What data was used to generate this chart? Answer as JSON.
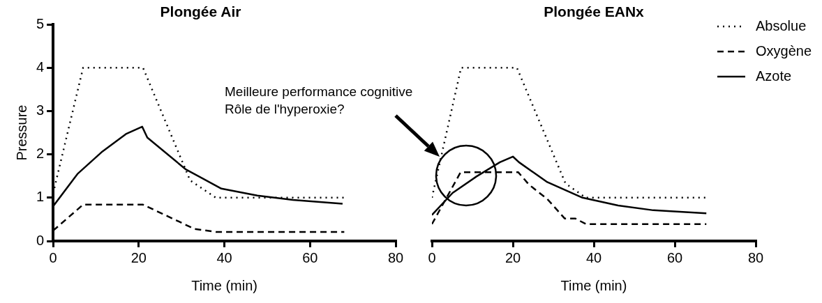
{
  "chart_data": [
    {
      "type": "line",
      "title": "Plongée Air",
      "xlabel": "Time (min)",
      "ylabel": "Pressure",
      "xlim": [
        0,
        80
      ],
      "xticks": [
        0,
        20,
        40,
        60,
        80
      ],
      "ylim": [
        0,
        5
      ],
      "yticks": [
        0,
        1,
        2,
        3,
        4,
        5
      ],
      "grid": false,
      "legend": false,
      "marker": "none",
      "series": [
        {
          "color": "#000000",
          "line_style": "dotted",
          "x": [
            0,
            7,
            21,
            32,
            38,
            68
          ],
          "values": [
            1.1,
            4,
            4,
            1.4,
            1,
            1
          ]
        },
        {
          "color": "#000000",
          "line_style": "dashed",
          "x": [
            0,
            7,
            21,
            33,
            38,
            68
          ],
          "values": [
            0.24,
            0.84,
            0.84,
            0.28,
            0.21,
            0.21
          ]
        },
        {
          "color": "#000000",
          "line_style": "solid",
          "x": [
            0,
            5.7,
            11.3,
            17,
            20.8,
            22,
            30.9,
            39.3,
            47.7,
            56,
            67.6
          ],
          "values": [
            0.8,
            1.55,
            2.05,
            2.47,
            2.64,
            2.39,
            1.66,
            1.21,
            1.05,
            0.95,
            0.86
          ]
        }
      ]
    },
    {
      "type": "line",
      "title": "Plongée EANx",
      "xlabel": "Time (min)",
      "xlim": [
        0,
        80
      ],
      "xticks": [
        0,
        20,
        40,
        60,
        80
      ],
      "ylim": [
        0,
        5
      ],
      "tick_labels": "x",
      "grid": false,
      "legend": "top right",
      "marker": "none",
      "annotations": [
        "Meilleure performance cognitive\nRôle de l'hyperoxie?"
      ],
      "series": [
        {
          "name": "Absolue",
          "color": "#000000",
          "line_style": "dotted",
          "x": [
            0,
            7.2,
            21,
            33,
            38,
            68
          ],
          "values": [
            1,
            4,
            4,
            1.33,
            1,
            1
          ]
        },
        {
          "name": "Oxygène",
          "color": "#000000",
          "line_style": "dashed",
          "x": [
            0,
            7.1,
            21.3,
            24,
            28.5,
            32.8,
            35.4,
            38.1,
            67.8
          ],
          "values": [
            0.39,
            1.59,
            1.59,
            1.3,
            0.97,
            0.52,
            0.52,
            0.39,
            0.39
          ]
        },
        {
          "name": "Azote",
          "color": "#000000",
          "line_style": "solid",
          "x": [
            0,
            5.1,
            11,
            16.8,
            20,
            21.5,
            28.5,
            37.2,
            46,
            54.7,
            67.8
          ],
          "values": [
            0.6,
            1.11,
            1.49,
            1.82,
            1.95,
            1.82,
            1.36,
            1,
            0.82,
            0.71,
            0.64
          ]
        }
      ]
    }
  ]
}
